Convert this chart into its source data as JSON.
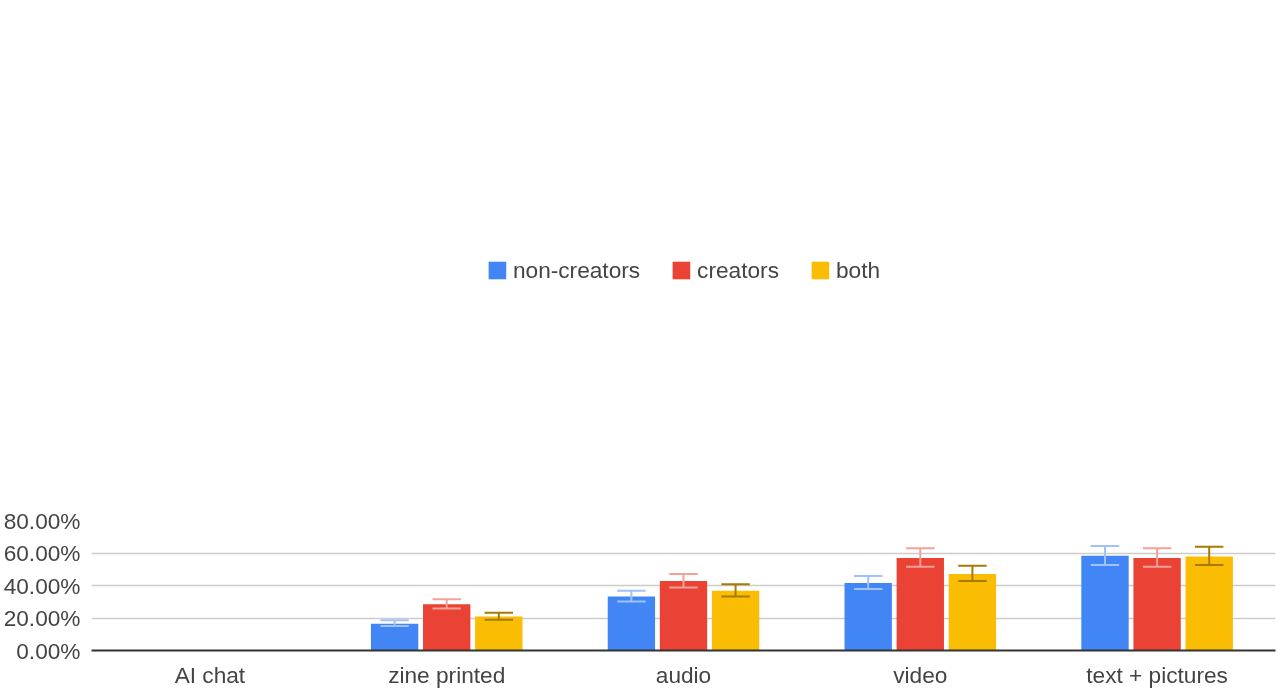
{
  "chart_data": {
    "type": "bar",
    "categories": [
      "AI chat",
      "zine printed",
      "audio",
      "video",
      "text + pictures"
    ],
    "series": [
      {
        "name": "non-creators",
        "color": "#4285f4",
        "values": [
          0,
          16.5,
          33.3,
          41.5,
          58.3
        ],
        "errors": [
          null,
          [
            15.1,
            18.6
          ],
          [
            30.1,
            36.8
          ],
          [
            37.8,
            45.9
          ],
          [
            52.6,
            64.3
          ]
        ]
      },
      {
        "name": "creators",
        "color": "#ea4335",
        "values": [
          0,
          28.5,
          42.8,
          56.9,
          56.9
        ],
        "errors": [
          null,
          [
            25.9,
            31.6
          ],
          [
            38.7,
            47.1
          ],
          [
            51.5,
            62.9
          ],
          [
            51.5,
            62.9
          ]
        ]
      },
      {
        "name": "both",
        "color": "#fbbc04",
        "values": [
          0,
          21.0,
          36.8,
          47.1,
          57.9
        ],
        "errors": [
          null,
          [
            19.0,
            23.2
          ],
          [
            33.3,
            40.7
          ],
          [
            42.7,
            52.2
          ],
          [
            52.6,
            63.8
          ]
        ]
      }
    ],
    "ylim": [
      0,
      80
    ],
    "yticks": [
      {
        "value": 0,
        "label": "0.00%"
      },
      {
        "value": 20,
        "label": "20.00%"
      },
      {
        "value": 40,
        "label": "40.00%"
      },
      {
        "value": 60,
        "label": "60.00%"
      },
      {
        "value": 80,
        "label": "80.00%"
      }
    ],
    "grid": "y",
    "legend": "top"
  }
}
